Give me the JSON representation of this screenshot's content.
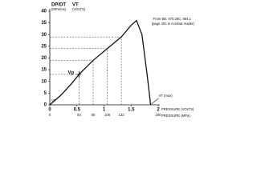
{
  "chart_data": {
    "type": "line",
    "y_label": [
      "DP/DT",
      "(MPa/ms)"
    ],
    "y_label_2": [
      "VT",
      "(VOLTS)"
    ],
    "x_label": "PRESSURE (VOLTS)",
    "x2_label": "PRESSURE (MPa)",
    "annotation": [
      "From BB, 970.28C, 864.1",
      "(page 401 in Acrobat reader)"
    ],
    "marker_labels": {
      "peak_voltage": "Vp",
      "threshold": "VT",
      "max": "VT (max)"
    },
    "x": [
      0,
      0.2,
      0.4,
      0.54,
      0.8,
      1.06,
      1.32,
      1.5,
      1.6,
      1.7,
      1.8,
      1.86
    ],
    "series": [
      {
        "color": "#111111",
        "values": [
          0,
          4,
          9,
          13,
          19,
          24,
          29,
          34,
          36,
          30,
          12,
          0
        ]
      }
    ],
    "xlim": [
      0,
      2.0
    ],
    "xticks": [
      0,
      0.5,
      1.0,
      1.5,
      2.0
    ],
    "x2lim": [
      0,
      200
    ],
    "x2ticks": [
      0,
      54,
      80,
      106,
      132,
      200
    ],
    "ylim": [
      0,
      40
    ],
    "yticks": [
      0,
      5,
      10,
      15,
      20,
      25,
      30,
      35,
      40
    ]
  }
}
